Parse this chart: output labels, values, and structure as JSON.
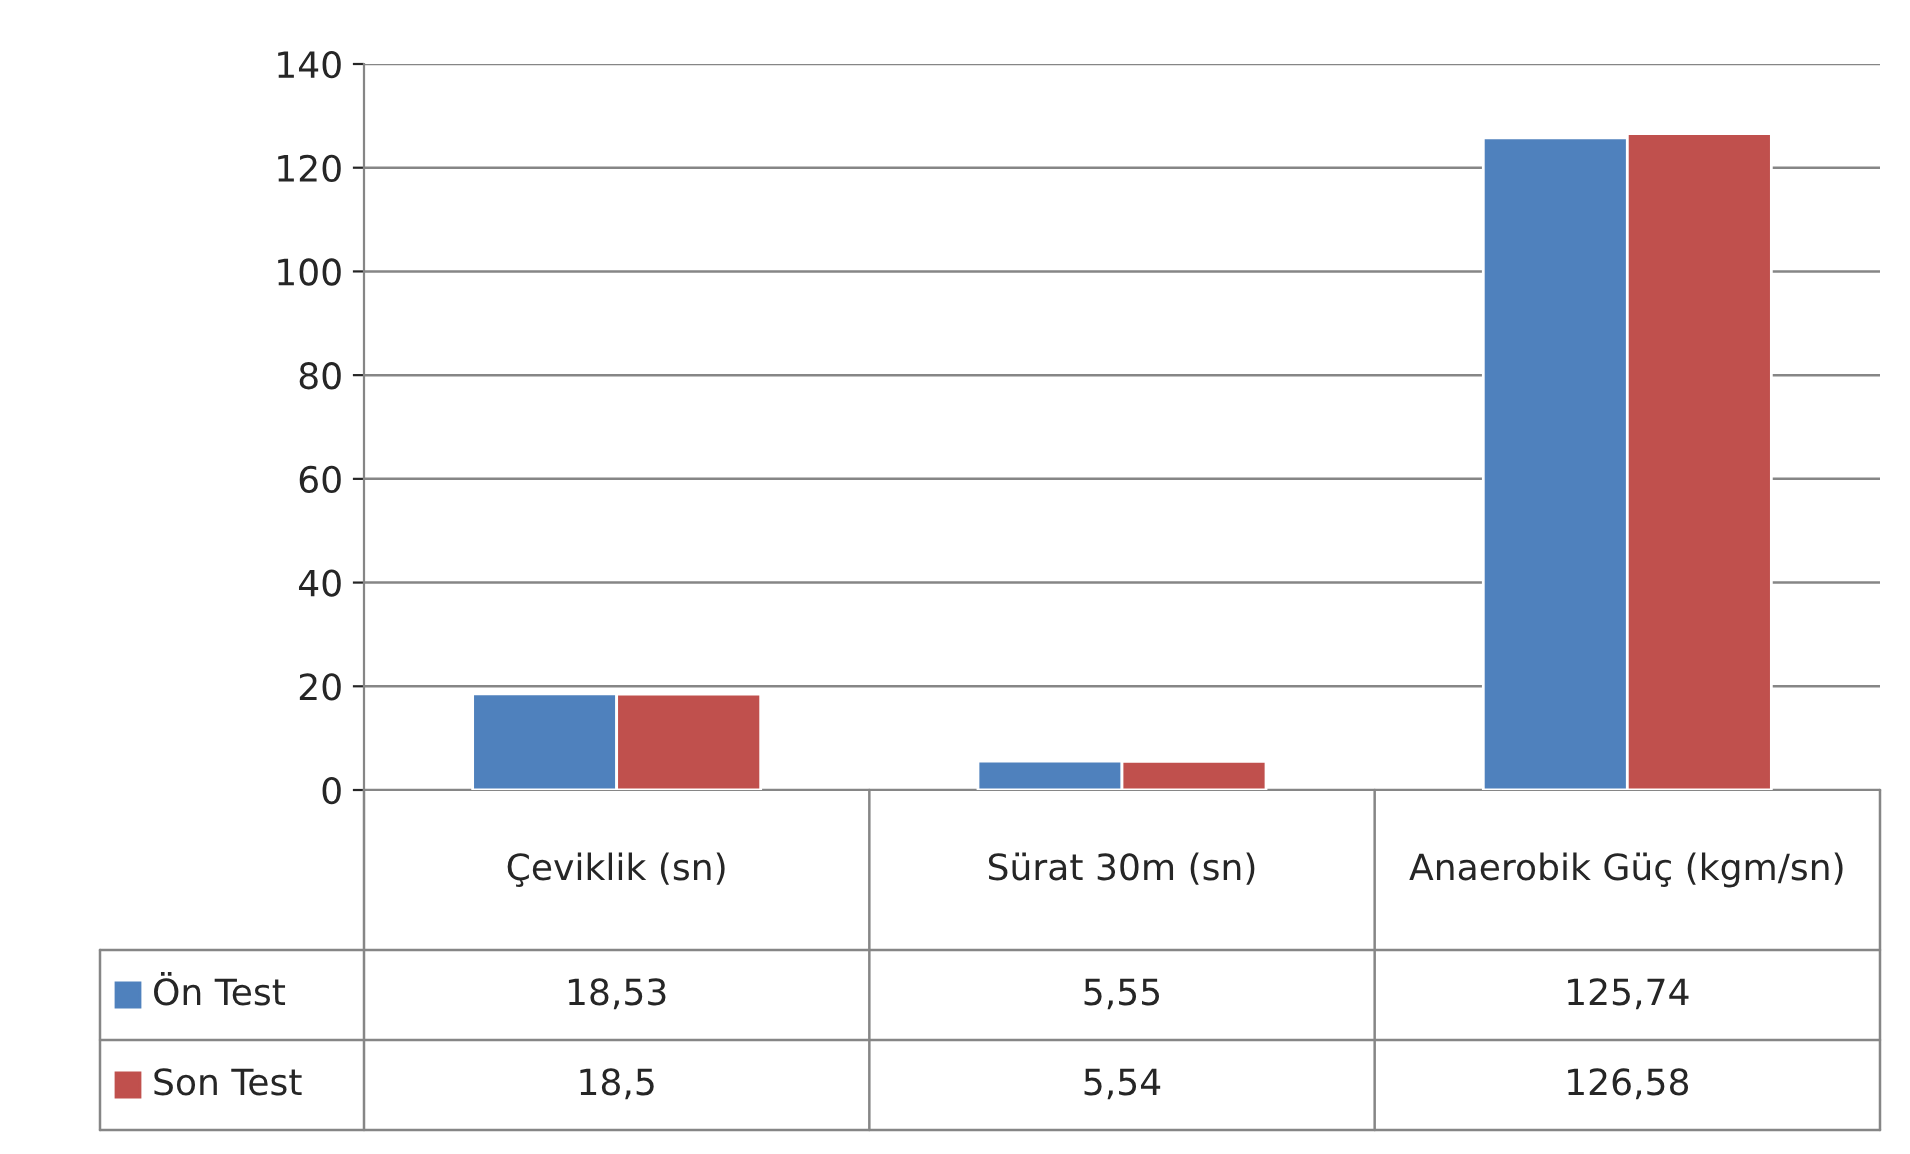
{
  "chart_data": {
    "type": "bar",
    "categories": [
      "Çeviklik (sn)",
      "Sürat 30m (sn)",
      "Anaerobik Güç (kgm/sn)"
    ],
    "series": [
      {
        "name": "Ön Test",
        "color": "#4f81bd",
        "values": [
          18.53,
          5.55,
          125.74
        ],
        "value_labels": [
          "18,53",
          "5,55",
          "125,74"
        ]
      },
      {
        "name": "Son Test",
        "color": "#c0504d",
        "values": [
          18.5,
          5.54,
          126.58
        ],
        "value_labels": [
          "18,5",
          "5,54",
          "126,58"
        ]
      }
    ],
    "ylim": [
      0,
      140
    ],
    "yticks": [
      0,
      20,
      40,
      60,
      80,
      100,
      120,
      140
    ],
    "grid": "y",
    "legend": "bottom"
  }
}
